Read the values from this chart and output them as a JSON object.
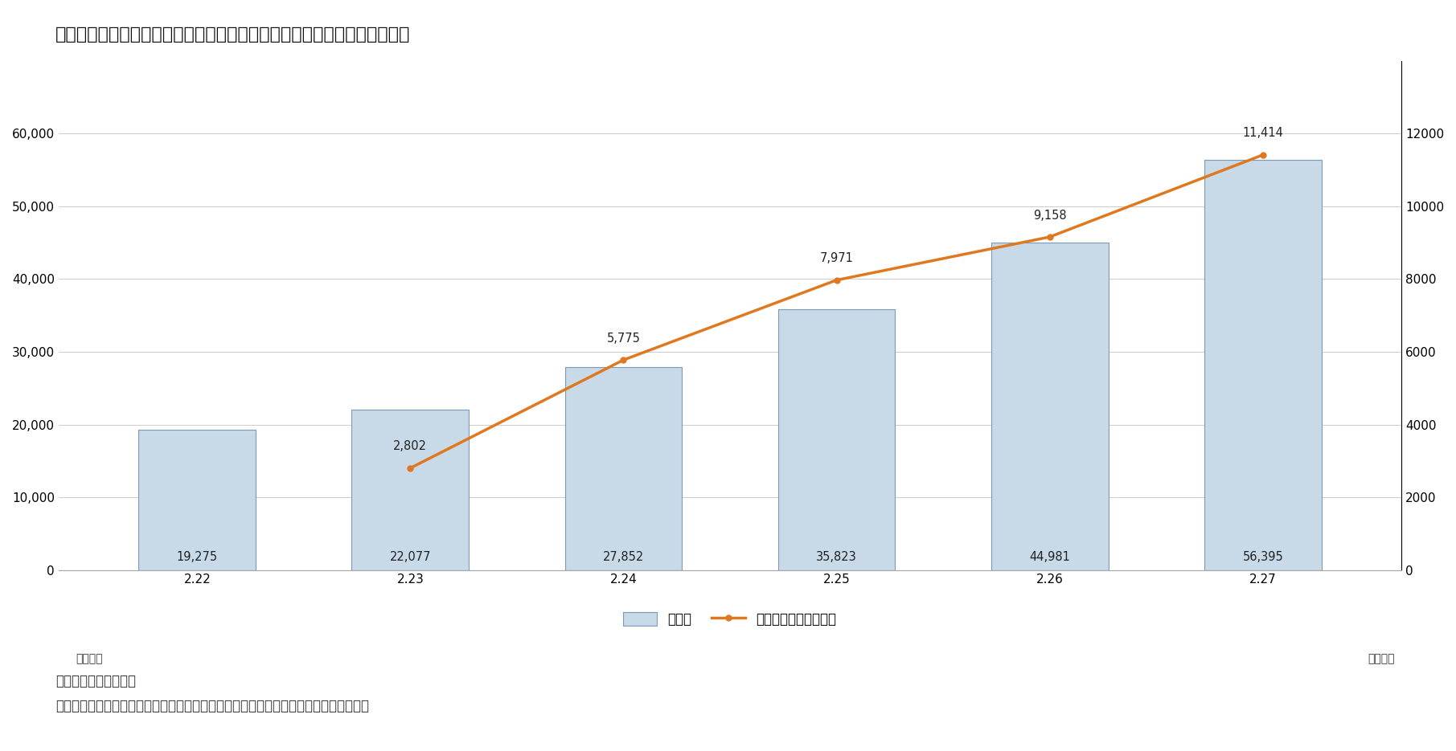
{
  "title": "韓国における新型コロナウイルスの検査数と検査の対前日比増加数の推移",
  "categories": [
    "2.22",
    "2.23",
    "2.24",
    "2.25",
    "2.26",
    "2.27"
  ],
  "bar_values": [
    19275,
    22077,
    27852,
    35823,
    44981,
    56395
  ],
  "line_values": [
    null,
    2802,
    5775,
    7971,
    9158,
    11414
  ],
  "bar_labels": [
    "19,275",
    "22,077",
    "27,852",
    "35,823",
    "44,981",
    "56,395"
  ],
  "line_labels": [
    "",
    "2,802",
    "5,775",
    "7,971",
    "9,158",
    "11,414"
  ],
  "bar_color": "#c8d9e8",
  "bar_edge_color": "#7a9ab5",
  "line_color": "#e07820",
  "left_ylim": [
    0,
    70000
  ],
  "right_ylim": [
    0,
    14000
  ],
  "left_yticks": [
    0,
    10000,
    20000,
    30000,
    40000,
    50000,
    60000
  ],
  "right_yticks": [
    0,
    2000,
    4000,
    6000,
    8000,
    10000,
    12000
  ],
  "left_ytick_labels": [
    "0",
    "10,000",
    "20,000",
    "30,000",
    "40,000",
    "50,000",
    "60,000"
  ],
  "right_ytick_labels": [
    "0",
    "2000",
    "4000",
    "6000",
    "8000",
    "10000",
    "12000"
  ],
  "left_unit_label": "単位：人",
  "right_unit_label": "単位：人",
  "legend_bar_label": "検査数",
  "legend_line_label": "検査の対前日比増加数",
  "note1": "注）毎日午前９時基準",
  "note2": "出所）韓国疾病管理本部「新型コロナウイルス感染症発生現況」（各日）から筆者作成",
  "bg_color": "#ffffff",
  "title_fontsize": 16,
  "label_fontsize": 12,
  "tick_fontsize": 11,
  "note_fontsize": 12,
  "bar_label_fontsize": 10.5,
  "line_label_fontsize": 10.5
}
